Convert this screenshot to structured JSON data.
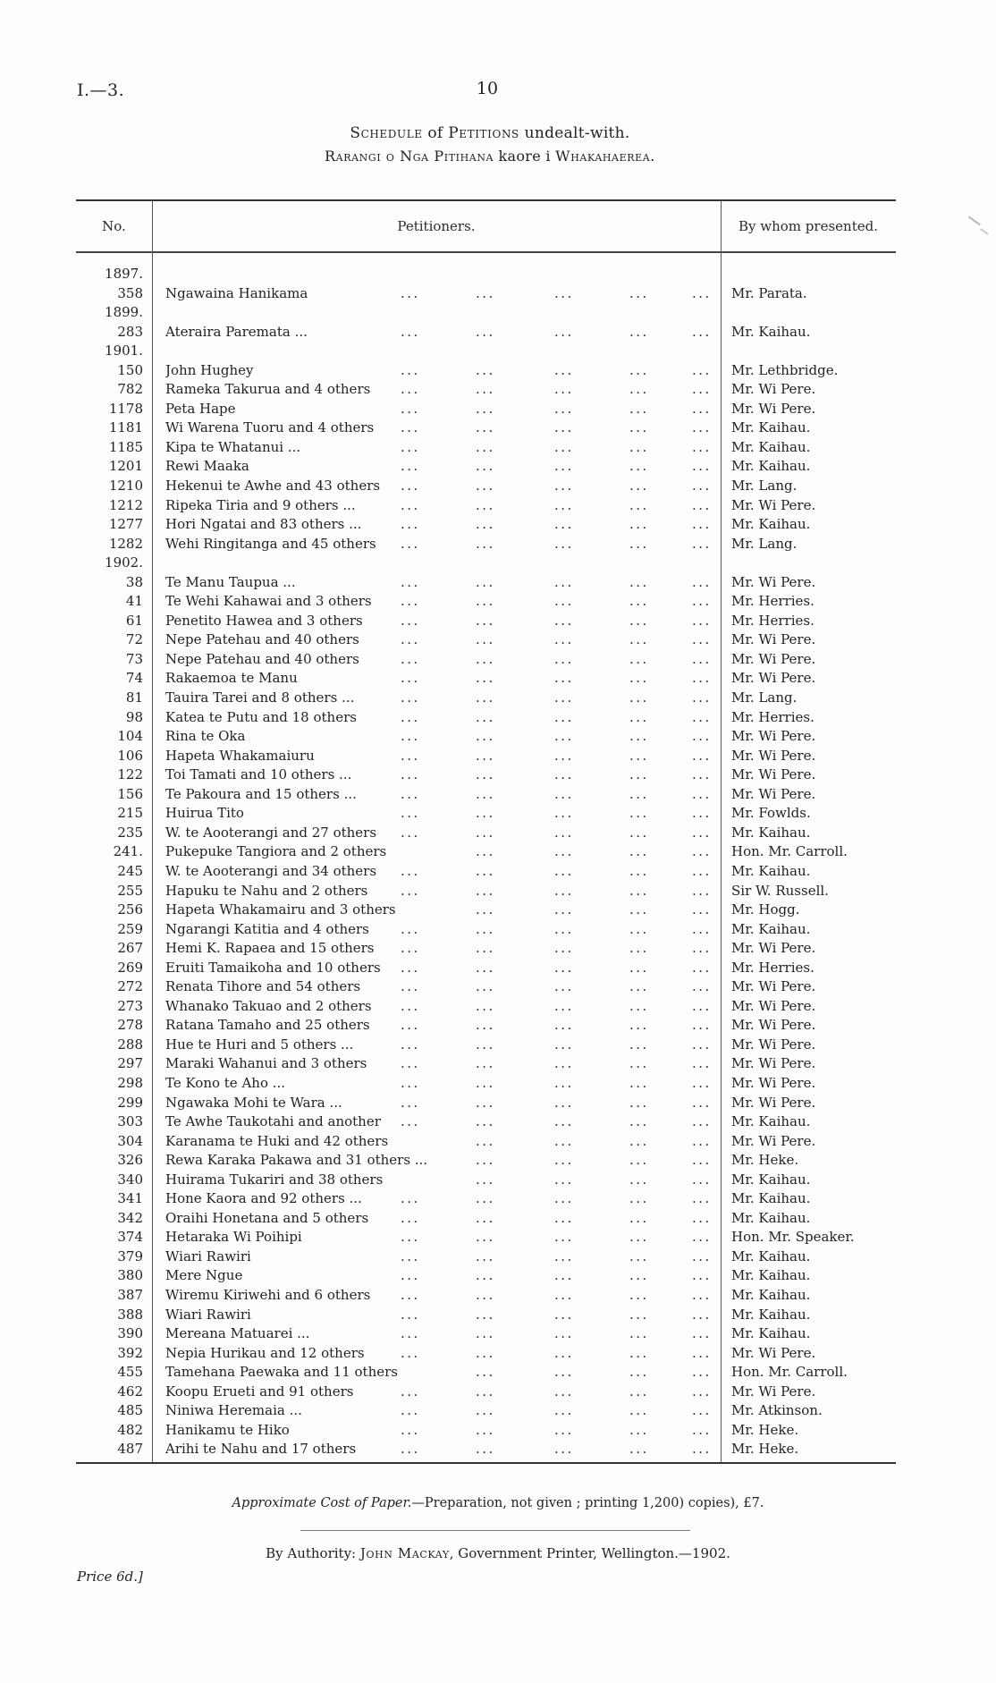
{
  "page": {
    "doc_ref": "I.—3.",
    "page_number": "10",
    "title_line1": {
      "p1": "Schedule",
      "p2": " of ",
      "p3": "Petitions",
      "p4": " undealt-with."
    },
    "title_line2": {
      "p1": "Rarangi o Nga Pitihana",
      "p2": " kaore i ",
      "p3": "Whakahaerea."
    }
  },
  "table": {
    "headers": {
      "no": "No.",
      "petitioners": "Petitioners.",
      "presented": "By whom presented."
    },
    "rows": [
      {
        "year": "1897."
      },
      {
        "no": "358",
        "petitioner": "Ngawaina Hanikama",
        "presented": "Mr. Parata."
      },
      {
        "year": "1899."
      },
      {
        "no": "283",
        "petitioner": "Ateraira Paremata ...",
        "presented": "Mr. Kaihau."
      },
      {
        "year": "1901."
      },
      {
        "no": "150",
        "petitioner": "John Hughey",
        "presented": "Mr. Lethbridge."
      },
      {
        "no": "782",
        "petitioner": "Rameka Takurua and 4 others",
        "presented": "Mr. Wi Pere."
      },
      {
        "no": "1178",
        "petitioner": "Peta Hape",
        "presented": "Mr. Wi Pere."
      },
      {
        "no": "1181",
        "petitioner": "Wi Warena Tuoru and 4 others",
        "presented": "Mr. Kaihau."
      },
      {
        "no": "1185",
        "petitioner": "Kipa te Whatanui ...",
        "presented": "Mr. Kaihau."
      },
      {
        "no": "1201",
        "petitioner": "Rewi Maaka",
        "presented": "Mr. Kaihau."
      },
      {
        "no": "1210",
        "petitioner": "Hekenui te Awhe and 43 others",
        "presented": "Mr. Lang."
      },
      {
        "no": "1212",
        "petitioner": "Ripeka Tiria and 9 others ...",
        "presented": "Mr. Wi Pere."
      },
      {
        "no": "1277",
        "petitioner": "Hori Ngatai and 83 others ...",
        "presented": "Mr. Kaihau."
      },
      {
        "no": "1282",
        "petitioner": "Wehi Ringitanga and 45 others",
        "presented": "Mr. Lang."
      },
      {
        "year": "1902."
      },
      {
        "no": "38",
        "petitioner": "Te Manu Taupua ...",
        "presented": "Mr. Wi Pere."
      },
      {
        "no": "41",
        "petitioner": "Te Wehi Kahawai and 3 others",
        "presented": "Mr. Herries."
      },
      {
        "no": "61",
        "petitioner": "Penetito Hawea and 3 others",
        "presented": "Mr. Herries."
      },
      {
        "no": "72",
        "petitioner": "Nepe Patehau and 40 others",
        "presented": "Mr. Wi Pere."
      },
      {
        "no": "73",
        "petitioner": "Nepe Patehau and 40 others",
        "presented": "Mr. Wi Pere."
      },
      {
        "no": "74",
        "petitioner": "Rakaemoa te Manu",
        "presented": "Mr. Wi Pere."
      },
      {
        "no": "81",
        "petitioner": "Tauira Tarei and 8 others ...",
        "presented": "Mr. Lang."
      },
      {
        "no": "98",
        "petitioner": "Katea te Putu and 18 others",
        "presented": "Mr. Herries."
      },
      {
        "no": "104",
        "petitioner": "Rina te Oka",
        "presented": "Mr. Wi Pere."
      },
      {
        "no": "106",
        "petitioner": "Hapeta Whakamaiuru",
        "presented": "Mr. Wi Pere."
      },
      {
        "no": "122",
        "petitioner": "Toi Tamati and 10 others ...",
        "presented": "Mr. Wi Pere."
      },
      {
        "no": "156",
        "petitioner": "Te Pakoura and 15 others ...",
        "presented": "Mr. Wi Pere."
      },
      {
        "no": "215",
        "petitioner": "Huirua Tito",
        "presented": "Mr. Fowlds."
      },
      {
        "no": "235",
        "petitioner": "W. te Aooterangi and 27 others",
        "presented": "Mr. Kaihau."
      },
      {
        "no": "241.",
        "petitioner": "Pukepuke Tangiora and 2 others",
        "presented": "Hon. Mr. Carroll."
      },
      {
        "no": "245",
        "petitioner": "W. te Aooterangi and 34 others",
        "presented": "Mr. Kaihau."
      },
      {
        "no": "255",
        "petitioner": "Hapuku te Nahu and 2 others",
        "presented": "Sir W. Russell."
      },
      {
        "no": "256",
        "petitioner": "Hapeta Whakamairu and 3 others",
        "presented": "Mr. Hogg."
      },
      {
        "no": "259",
        "petitioner": "Ngarangi Katitia and 4 others",
        "presented": "Mr. Kaihau."
      },
      {
        "no": "267",
        "petitioner": "Hemi K. Rapaea and 15 others",
        "presented": "Mr. Wi Pere."
      },
      {
        "no": "269",
        "petitioner": "Eruiti Tamaikoha and 10 others",
        "presented": "Mr. Herries."
      },
      {
        "no": "272",
        "petitioner": "Renata Tihore and 54 others",
        "presented": "Mr. Wi Pere."
      },
      {
        "no": "273",
        "petitioner": "Whanako Takuao and 2 others",
        "presented": "Mr. Wi Pere."
      },
      {
        "no": "278",
        "petitioner": "Ratana Tamaho and 25 others",
        "presented": "Mr. Wi Pere."
      },
      {
        "no": "288",
        "petitioner": "Hue te Huri and 5 others ...",
        "presented": "Mr. Wi Pere."
      },
      {
        "no": "297",
        "petitioner": "Maraki Wahanui and 3 others",
        "presented": "Mr. Wi Pere."
      },
      {
        "no": "298",
        "petitioner": "Te Kono te Aho ...",
        "presented": "Mr. Wi Pere."
      },
      {
        "no": "299",
        "petitioner": "Ngawaka Mohi te Wara ...",
        "presented": "Mr. Wi Pere."
      },
      {
        "no": "303",
        "petitioner": "Te Awhe Taukotahi and another",
        "presented": "Mr. Kaihau."
      },
      {
        "no": "304",
        "petitioner": "Karanama te Huki and 42 others",
        "presented": "Mr. Wi Pere."
      },
      {
        "no": "326",
        "petitioner": "Rewa Karaka Pakawa and 31 others ...",
        "presented": "Mr. Heke."
      },
      {
        "no": "340",
        "petitioner": "Huirama Tukariri and 38 others",
        "presented": "Mr. Kaihau."
      },
      {
        "no": "341",
        "petitioner": "Hone Kaora and 92 others ...",
        "presented": "Mr. Kaihau."
      },
      {
        "no": "342",
        "petitioner": "Oraihi Honetana and 5 others",
        "presented": "Mr. Kaihau."
      },
      {
        "no": "374",
        "petitioner": "Hetaraka Wi Poihipi",
        "presented": "Hon. Mr. Speaker."
      },
      {
        "no": "379",
        "petitioner": "Wiari Rawiri",
        "presented": "Mr. Kaihau."
      },
      {
        "no": "380",
        "petitioner": "Mere Ngue",
        "presented": "Mr. Kaihau."
      },
      {
        "no": "387",
        "petitioner": "Wiremu Kiriwehi and 6 others",
        "presented": "Mr. Kaihau."
      },
      {
        "no": "388",
        "petitioner": "Wiari Rawiri",
        "presented": "Mr. Kaihau."
      },
      {
        "no": "390",
        "petitioner": "Mereana Matuarei ...",
        "presented": "Mr. Kaihau."
      },
      {
        "no": "392",
        "petitioner": "Nepia Hurikau and 12 others",
        "presented": "Mr. Wi Pere."
      },
      {
        "no": "455",
        "petitioner": "Tamehana Paewaka and 11 others",
        "presented": "Hon. Mr. Carroll."
      },
      {
        "no": "462",
        "petitioner": "Koopu Erueti and 91 others",
        "presented": "Mr. Wi Pere."
      },
      {
        "no": "485",
        "petitioner": "Niniwa Heremaia ...",
        "presented": "Mr. Atkinson."
      },
      {
        "no": "482",
        "petitioner": "Hanikamu te Hiko",
        "presented": "Mr. Heke."
      },
      {
        "no": "487",
        "petitioner": "Arihi te Nahu and 17 others",
        "presented": "Mr. Heke."
      }
    ]
  },
  "footer": {
    "cost_italic": "Approximate Cost of Paper.",
    "cost_rest": "—Preparation, not given ; printing 1,200) copies), £7.",
    "authority_p1": "By Authority: ",
    "authority_name": "John Mackay",
    "authority_p2": ", Government Printer, Wellington.—1902.",
    "price": "Price 6d.]"
  }
}
